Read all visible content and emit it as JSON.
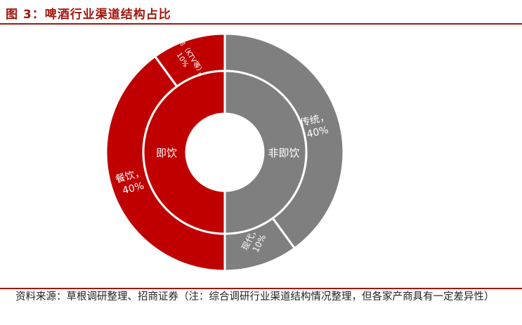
{
  "figure": {
    "title": "图 3：啤酒行业渠道结构占比",
    "source": "资料来源：草根调研整理、招商证券（注：综合调研行业渠道结构情况整理，但各家产商具有一定差异性）"
  },
  "colors": {
    "red": "#c00000",
    "gray": "#7f7f7f",
    "title_red": "#a0170f"
  },
  "chart_data": {
    "type": "pie",
    "subtype": "nested-donut",
    "title": "啤酒行业渠道结构占比",
    "inner_ring": [
      {
        "label": "即饮",
        "value": 50,
        "color": "#c00000"
      },
      {
        "label": "非即饮",
        "value": 50,
        "color": "#7f7f7f"
      }
    ],
    "outer_ring": [
      {
        "label": "传统，",
        "pct_label": "40%",
        "value": 40,
        "parent": "非即饮",
        "color": "#7f7f7f"
      },
      {
        "label": "现代，",
        "pct_label": "10%",
        "value": 10,
        "parent": "非即饮",
        "color": "#7f7f7f"
      },
      {
        "label": "餐饮，",
        "pct_label": "40%",
        "value": 40,
        "parent": "即饮",
        "color": "#c00000"
      },
      {
        "label": "其他（KTV等），",
        "pct_label": "10%",
        "value": 10,
        "parent": "即饮",
        "color": "#c00000"
      }
    ]
  }
}
